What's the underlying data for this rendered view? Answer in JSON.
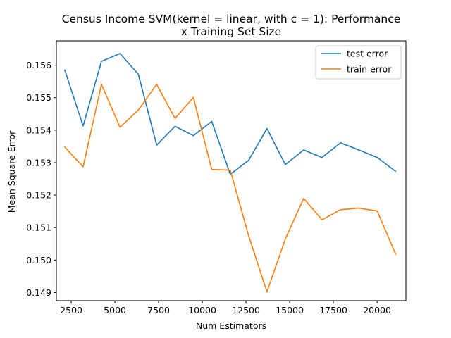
{
  "chart_data": {
    "type": "line",
    "title_line1": "Census Income SVM(kernel = linear, with c = 1): Performance",
    "title_line2": "x Training Set Size",
    "xlabel": "Num Estimators",
    "ylabel": "Mean Square Error",
    "xlim": [
      1650,
      21650
    ],
    "ylim": [
      0.14875,
      0.15675
    ],
    "xticks": [
      2500,
      5000,
      7500,
      10000,
      12500,
      15000,
      17500,
      20000
    ],
    "xtick_labels": [
      "2500",
      "5000",
      "7500",
      "10000",
      "12500",
      "15000",
      "17500",
      "20000"
    ],
    "yticks": [
      0.149,
      0.15,
      0.151,
      0.152,
      0.153,
      0.154,
      0.155,
      0.156
    ],
    "ytick_labels": [
      "0.149",
      "0.150",
      "0.151",
      "0.152",
      "0.153",
      "0.154",
      "0.155",
      "0.156"
    ],
    "legend_position": "top-right",
    "grid": false,
    "x": [
      2130,
      3180,
      4230,
      5290,
      6340,
      7390,
      8440,
      9490,
      10540,
      11600,
      12650,
      13700,
      14750,
      15800,
      16850,
      17910,
      18960,
      20010,
      21060
    ],
    "series": [
      {
        "name": "test error",
        "color": "#1f77b4",
        "values": [
          0.15585,
          0.15413,
          0.15612,
          0.15636,
          0.15572,
          0.15354,
          0.15412,
          0.15383,
          0.15427,
          0.15264,
          0.15307,
          0.15405,
          0.15294,
          0.15339,
          0.15316,
          0.15361,
          0.15339,
          0.15316,
          0.15273
        ]
      },
      {
        "name": "train error",
        "color": "#ff7f0e",
        "values": [
          0.15348,
          0.15287,
          0.15541,
          0.15409,
          0.15462,
          0.15541,
          0.15436,
          0.15501,
          0.15279,
          0.15277,
          0.15075,
          0.14902,
          0.15065,
          0.1519,
          0.15124,
          0.15155,
          0.1516,
          0.15151,
          0.15018
        ]
      }
    ]
  }
}
